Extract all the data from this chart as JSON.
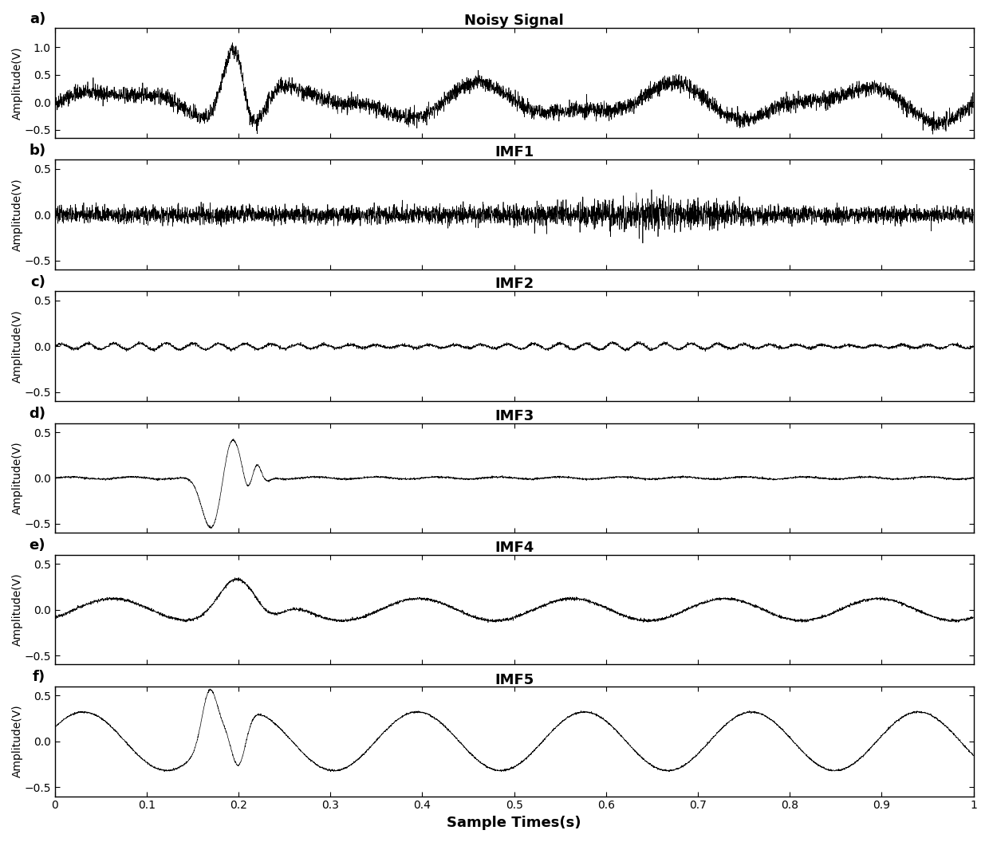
{
  "titles": [
    "Noisy Signal",
    "IMF1",
    "IMF2",
    "IMF3",
    "IMF4",
    "IMF5"
  ],
  "panel_labels": [
    "a)",
    "b)",
    "c)",
    "d)",
    "e)",
    "f)"
  ],
  "xlim": [
    0,
    1
  ],
  "xticks": [
    0,
    0.1,
    0.2,
    0.3,
    0.4,
    0.5,
    0.6,
    0.7,
    0.8,
    0.9,
    1
  ],
  "xtick_labels": [
    "0",
    "0.1",
    "0.2",
    "0.3",
    "0.4",
    "0.5",
    "0.6",
    "0.7",
    "0.8",
    "0.9",
    "1"
  ],
  "xlabel": "Sample Times(s)",
  "ylabel": "Amplitude(V)",
  "ylim_noisy": [
    -0.65,
    1.35
  ],
  "yticks_noisy": [
    -0.5,
    0,
    0.5,
    1
  ],
  "ylim_imf": [
    -0.6,
    0.6
  ],
  "yticks_imf": [
    -0.5,
    0,
    0.5
  ],
  "fs": 5000,
  "duration": 1.0,
  "background_color": "#ffffff",
  "line_color": "#000000",
  "linewidth": 0.5
}
